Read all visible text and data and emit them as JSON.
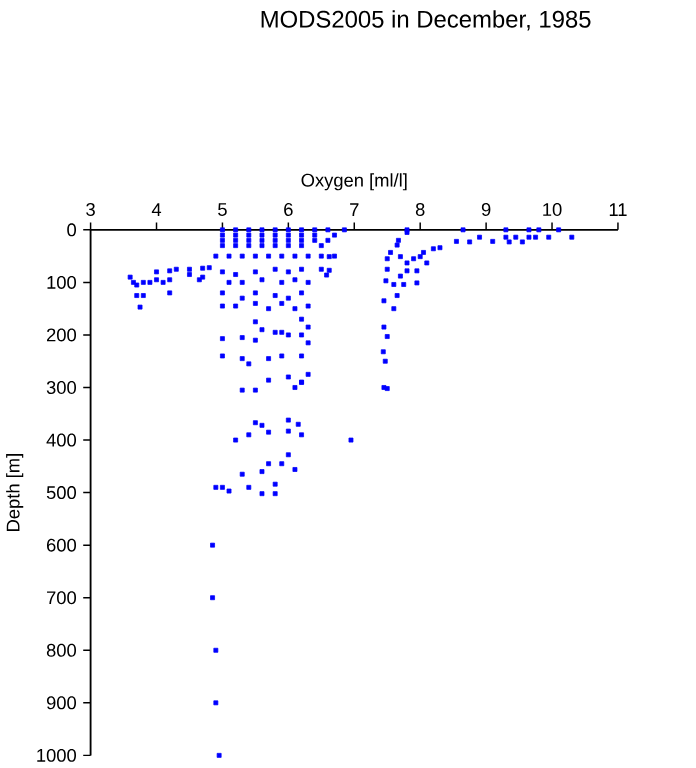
{
  "chart_data": {
    "type": "scatter",
    "title": "MODS2005 in December, 1985",
    "xlabel": "Oxygen [ml/l]",
    "ylabel": "Depth [m]",
    "xlim": [
      3,
      11
    ],
    "ylim": [
      1000,
      0
    ],
    "xticks": [
      3,
      4,
      5,
      6,
      7,
      8,
      9,
      10,
      11
    ],
    "yticks": [
      0,
      100,
      200,
      300,
      400,
      500,
      600,
      700,
      800,
      900,
      1000
    ],
    "marker": "square",
    "grid": false,
    "series": [
      {
        "color": "#0000ff",
        "x": [
          5.0,
          5.2,
          5.4,
          5.6,
          5.8,
          6.0,
          6.2,
          6.4,
          6.6,
          6.85,
          5.0,
          5.2,
          5.4,
          5.6,
          5.8,
          6.0,
          6.2,
          6.4,
          6.7,
          5.0,
          5.2,
          5.4,
          5.6,
          5.8,
          6.0,
          6.2,
          6.4,
          6.6,
          5.0,
          5.2,
          5.4,
          5.6,
          5.8,
          6.0,
          6.2,
          6.5,
          4.9,
          5.1,
          5.3,
          5.5,
          5.7,
          5.9,
          6.1,
          6.3,
          6.5,
          6.7,
          3.6,
          3.65,
          3.7,
          3.8,
          3.9,
          4.0,
          4.1,
          4.2,
          3.7,
          3.8,
          4.2,
          3.75,
          4.0,
          4.2,
          4.3,
          4.5,
          4.7,
          4.8,
          4.5,
          4.65,
          4.7,
          5.0,
          5.2,
          5.5,
          5.8,
          6.0,
          6.2,
          6.5,
          5.1,
          5.3,
          5.6,
          5.9,
          6.1,
          6.3,
          5.0,
          5.3,
          5.5,
          5.8,
          6.0,
          6.2,
          5.0,
          5.2,
          5.5,
          5.7,
          5.9,
          6.1,
          6.3,
          5.5,
          6.2,
          6.3,
          5.6,
          5.8,
          6.0,
          6.2,
          5.0,
          5.3,
          5.5,
          5.9,
          6.3,
          5.0,
          5.3,
          5.4,
          5.7,
          5.9,
          6.2,
          6.0,
          6.2,
          6.3,
          5.3,
          5.5,
          5.7,
          6.1,
          6.2,
          7.45,
          5.5,
          5.6,
          6.0,
          5.7,
          6.0,
          6.15,
          6.2,
          5.2,
          5.4,
          6.95,
          6.0,
          5.7,
          5.9,
          6.1,
          5.3,
          5.6,
          4.9,
          5.0,
          5.1,
          5.4,
          5.6,
          5.8,
          5.8,
          4.85,
          4.85,
          4.9,
          4.9,
          4.95,
          7.8,
          8.65,
          9.3,
          9.65,
          9.8,
          10.1,
          7.8,
          8.55,
          8.9,
          9.1,
          9.3,
          9.45,
          9.65,
          9.75,
          9.95,
          10.3,
          9.55,
          9.35,
          8.75,
          8.3,
          8.2,
          8.05,
          8.0,
          7.9,
          7.8,
          7.65,
          7.67,
          7.55,
          7.5,
          7.5,
          7.7,
          8.1,
          7.95,
          7.8,
          7.7,
          7.6,
          7.75,
          7.95,
          7.48,
          7.45,
          7.6,
          7.65,
          7.45,
          7.5,
          7.44,
          7.47,
          7.5,
          6.62,
          6.62,
          6.58
        ],
        "values": [
          0,
          0,
          0,
          0,
          0,
          0,
          0,
          0,
          0,
          0,
          10,
          10,
          10,
          10,
          10,
          10,
          10,
          10,
          10,
          20,
          20,
          20,
          20,
          20,
          20,
          20,
          20,
          20,
          30,
          30,
          30,
          30,
          30,
          30,
          30,
          30,
          50,
          50,
          50,
          50,
          50,
          50,
          50,
          50,
          50,
          50,
          90,
          100,
          105,
          100,
          100,
          95,
          100,
          95,
          125,
          125,
          120,
          147,
          80,
          78,
          75,
          75,
          73,
          72,
          85,
          95,
          90,
          80,
          85,
          80,
          75,
          80,
          75,
          75,
          100,
          100,
          95,
          100,
          95,
          100,
          120,
          130,
          120,
          125,
          130,
          120,
          145,
          145,
          140,
          150,
          140,
          150,
          145,
          175,
          170,
          185,
          190,
          195,
          200,
          200,
          207,
          205,
          210,
          195,
          215,
          240,
          245,
          255,
          245,
          240,
          240,
          280,
          290,
          275,
          305,
          305,
          286,
          300,
          290,
          300,
          367,
          372,
          362,
          385,
          383,
          370,
          390,
          400,
          390,
          400,
          428,
          445,
          445,
          456,
          465,
          460,
          490,
          490,
          497,
          490,
          502,
          484,
          502,
          600,
          700,
          800,
          900,
          1000,
          0,
          0,
          0,
          0,
          0,
          0,
          5,
          22,
          14,
          22,
          14,
          14,
          14,
          14,
          14,
          14,
          23,
          23,
          23,
          34,
          36,
          43,
          51,
          55,
          63,
          29,
          20,
          43,
          55,
          75,
          51,
          63,
          78,
          78,
          88,
          104,
          104,
          101,
          97,
          135,
          150,
          125,
          185,
          203,
          232,
          250,
          302,
          51,
          77,
          86
        ]
      }
    ]
  }
}
